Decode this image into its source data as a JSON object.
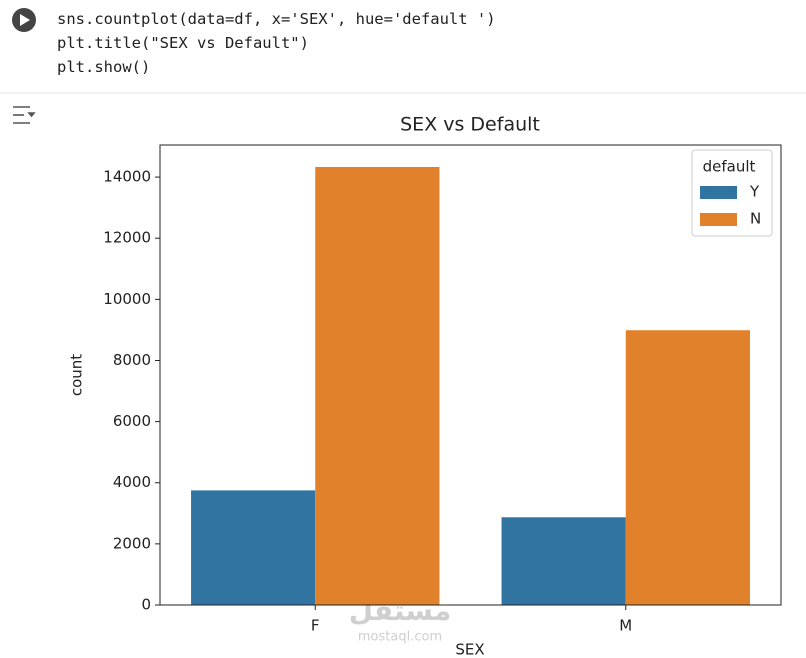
{
  "code": [
    "sns.countplot(data=df, x='SEX', hue='default ')",
    "plt.title(\"SEX vs Default\")",
    "plt.show()"
  ],
  "watermark": {
    "arabic": "مستقل",
    "site": "mostaql.com"
  },
  "chart_data": {
    "type": "bar",
    "title": "SEX vs Default",
    "x_label": "SEX",
    "y_label": "count",
    "categories": [
      "F",
      "M"
    ],
    "legend_title": "default",
    "legend": "upper right",
    "series": [
      {
        "name": "Y",
        "color": "#3274a1",
        "values": [
          3750,
          2870
        ]
      },
      {
        "name": "N",
        "color": "#e1812c",
        "values": [
          14330,
          8990
        ]
      }
    ],
    "ylim": [
      0,
      15050
    ],
    "yticks": [
      0,
      2000,
      4000,
      6000,
      8000,
      10000,
      12000,
      14000
    ]
  }
}
